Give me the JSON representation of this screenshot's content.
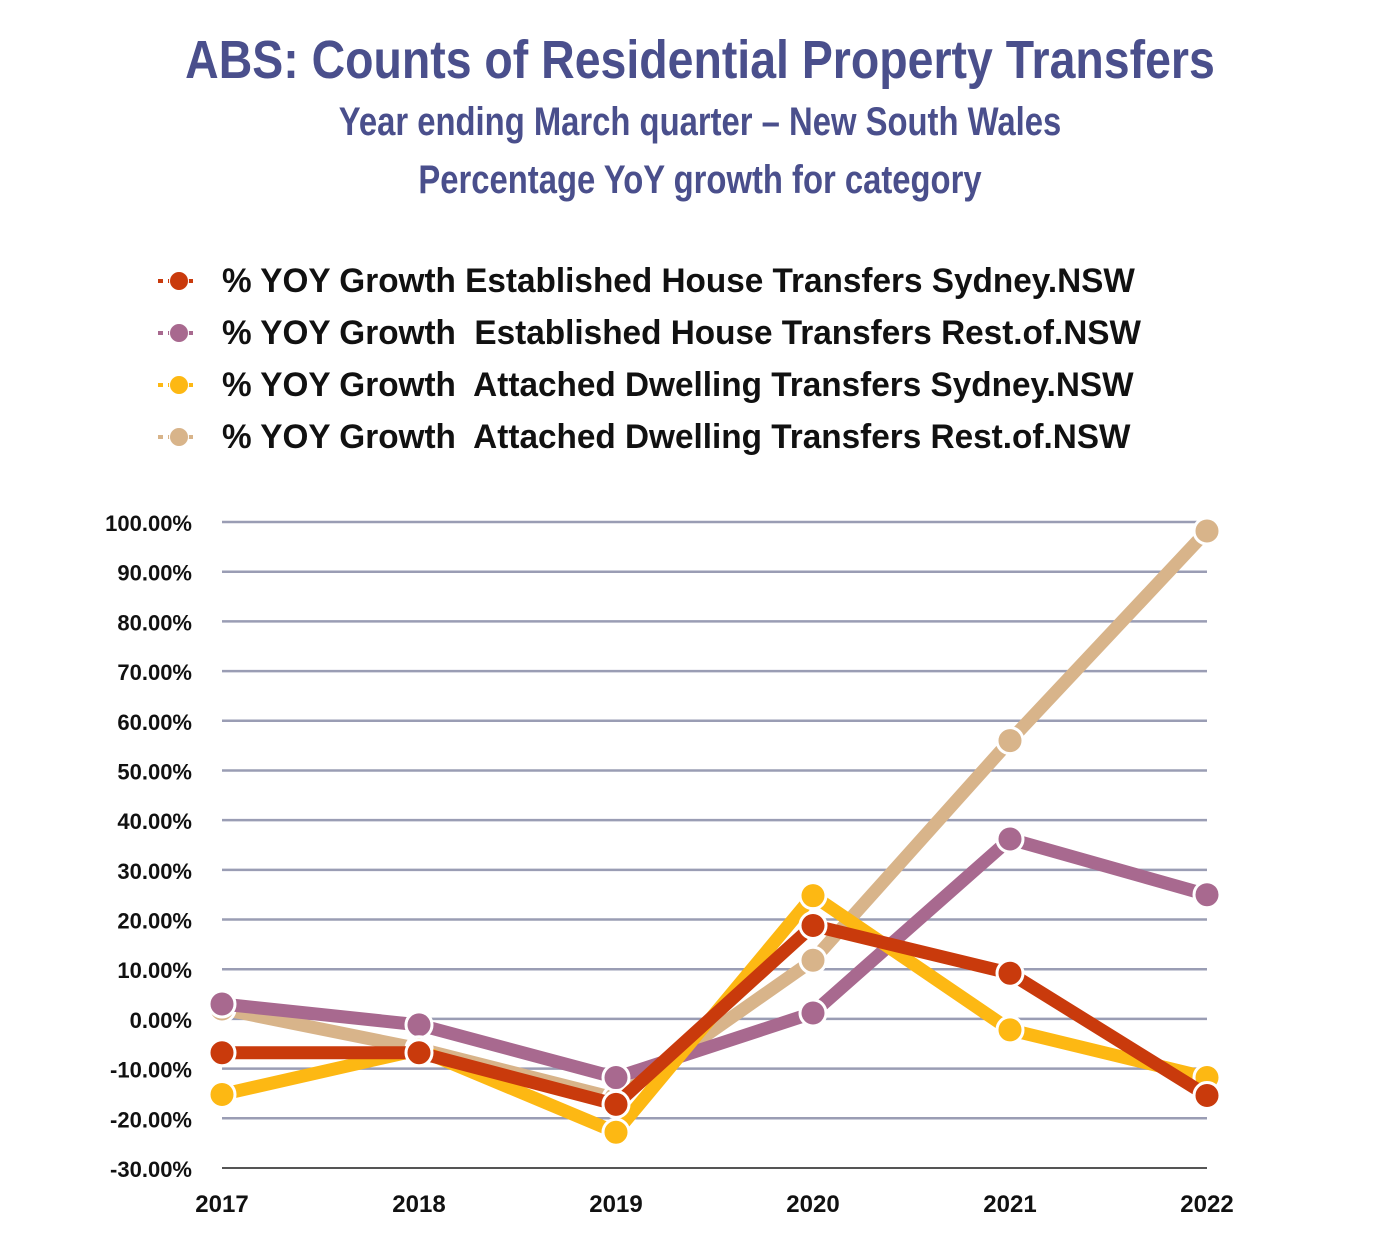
{
  "chart_data": {
    "type": "line",
    "title": "ABS: Counts of Residential Property Transfers",
    "subtitle_lines": [
      "Year ending March quarter – New South Wales",
      "Percentage YoY growth for category"
    ],
    "x": [
      "2017",
      "2018",
      "2019",
      "2020",
      "2021",
      "2022"
    ],
    "ylim": [
      -30,
      100
    ],
    "yticks": [
      100,
      90,
      80,
      70,
      60,
      50,
      40,
      30,
      20,
      10,
      0,
      -10,
      -20,
      -30
    ],
    "ytick_labels": [
      "100.00%",
      "90.00%",
      "80.00%",
      "70.00%",
      "60.00%",
      "50.00%",
      "40.00%",
      "30.00%",
      "20.00%",
      "10.00%",
      "0.00%",
      "-10.00%",
      "-20.00%",
      "-30.00%"
    ],
    "grid": true,
    "legend_position": "top",
    "series": [
      {
        "name": "% YOY Growth Established House Transfers Sydney.NSW",
        "color": "#c93a0c",
        "values": [
          -6.8,
          -6.8,
          -17.2,
          18.8,
          9.2,
          -15.4
        ]
      },
      {
        "name": "% YOY Growth  Established House Transfers Rest.of.NSW",
        "color": "#a8698f",
        "values": [
          3.0,
          -1.2,
          -11.8,
          1.2,
          36.2,
          25.0
        ]
      },
      {
        "name": "% YOY Growth  Attached Dwelling Transfers Sydney.NSW",
        "color": "#fdb813",
        "values": [
          -15.2,
          -6.2,
          -22.8,
          24.8,
          -2.2,
          -11.8
        ]
      },
      {
        "name": "% YOY Growth  Attached Dwelling Transfers Rest.of.NSW",
        "color": "#d8b48a",
        "values": [
          2.0,
          -6.0,
          -16.0,
          11.8,
          56.0,
          98.2
        ]
      }
    ],
    "draw_order": [
      3,
      1,
      2,
      0
    ]
  }
}
